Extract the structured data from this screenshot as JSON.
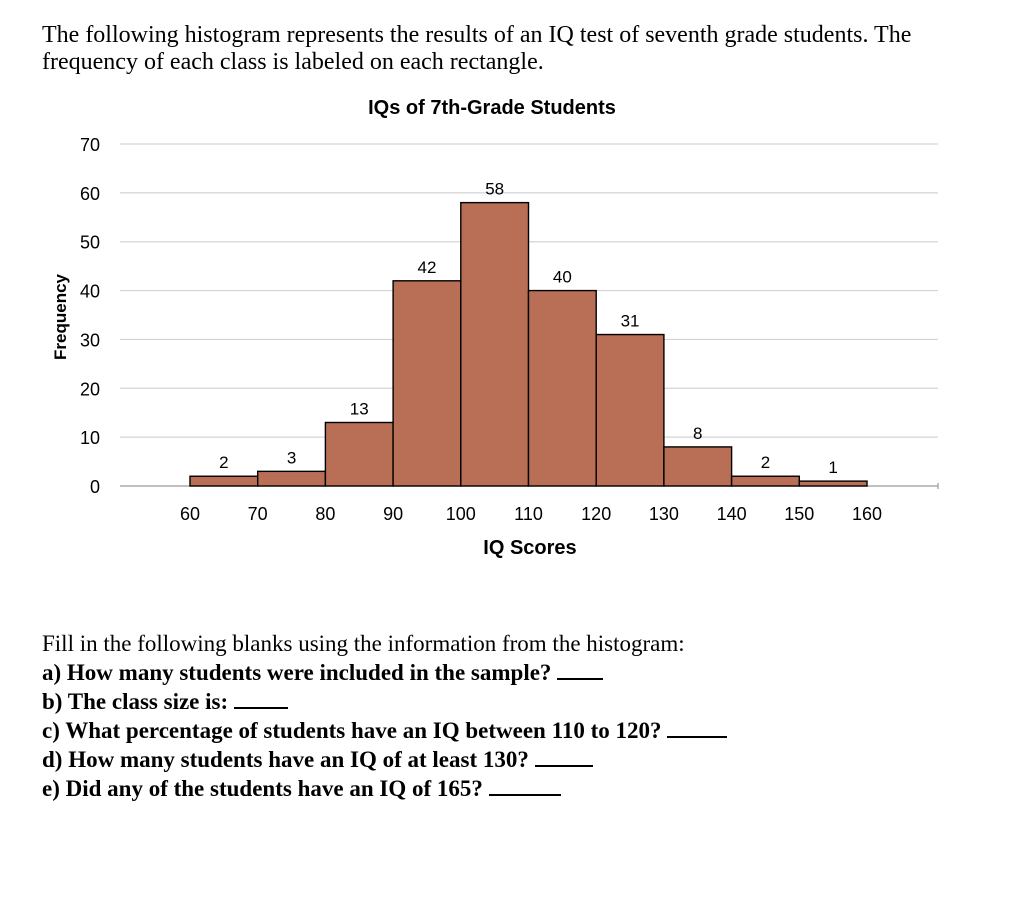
{
  "intro_text": "The following histogram represents the results of an IQ test of seventh grade students. The frequency of each class is labeled on each rectangle.",
  "chart_data": {
    "type": "bar",
    "title": "IQs of 7th-Grade Students",
    "xlabel": "IQ Scores",
    "ylabel": "Frequency",
    "bins": [
      [
        60,
        70
      ],
      [
        70,
        80
      ],
      [
        80,
        90
      ],
      [
        90,
        100
      ],
      [
        100,
        110
      ],
      [
        110,
        120
      ],
      [
        120,
        130
      ],
      [
        130,
        140
      ],
      [
        140,
        150
      ],
      [
        150,
        160
      ]
    ],
    "values": [
      2,
      3,
      13,
      42,
      58,
      40,
      31,
      8,
      2,
      1
    ],
    "x_ticks": [
      60,
      70,
      80,
      90,
      100,
      110,
      120,
      130,
      140,
      150,
      160
    ],
    "y_ticks": [
      0,
      10,
      20,
      30,
      40,
      50,
      60,
      70
    ],
    "xlim": [
      60,
      160
    ],
    "ylim": [
      0,
      70
    ],
    "grid": true,
    "bar_color": "#B96E56",
    "bar_edge_color": "#000000"
  },
  "instructions": "Fill in the following blanks using the information from the histogram:",
  "questions": [
    "a) How many students were included in the sample?",
    "b) The class size is:",
    "c) What percentage of students have an IQ between 110 to 120?",
    "d) How many students have an IQ of at least 130?",
    "e) Did any of the students have an IQ of 165?"
  ]
}
